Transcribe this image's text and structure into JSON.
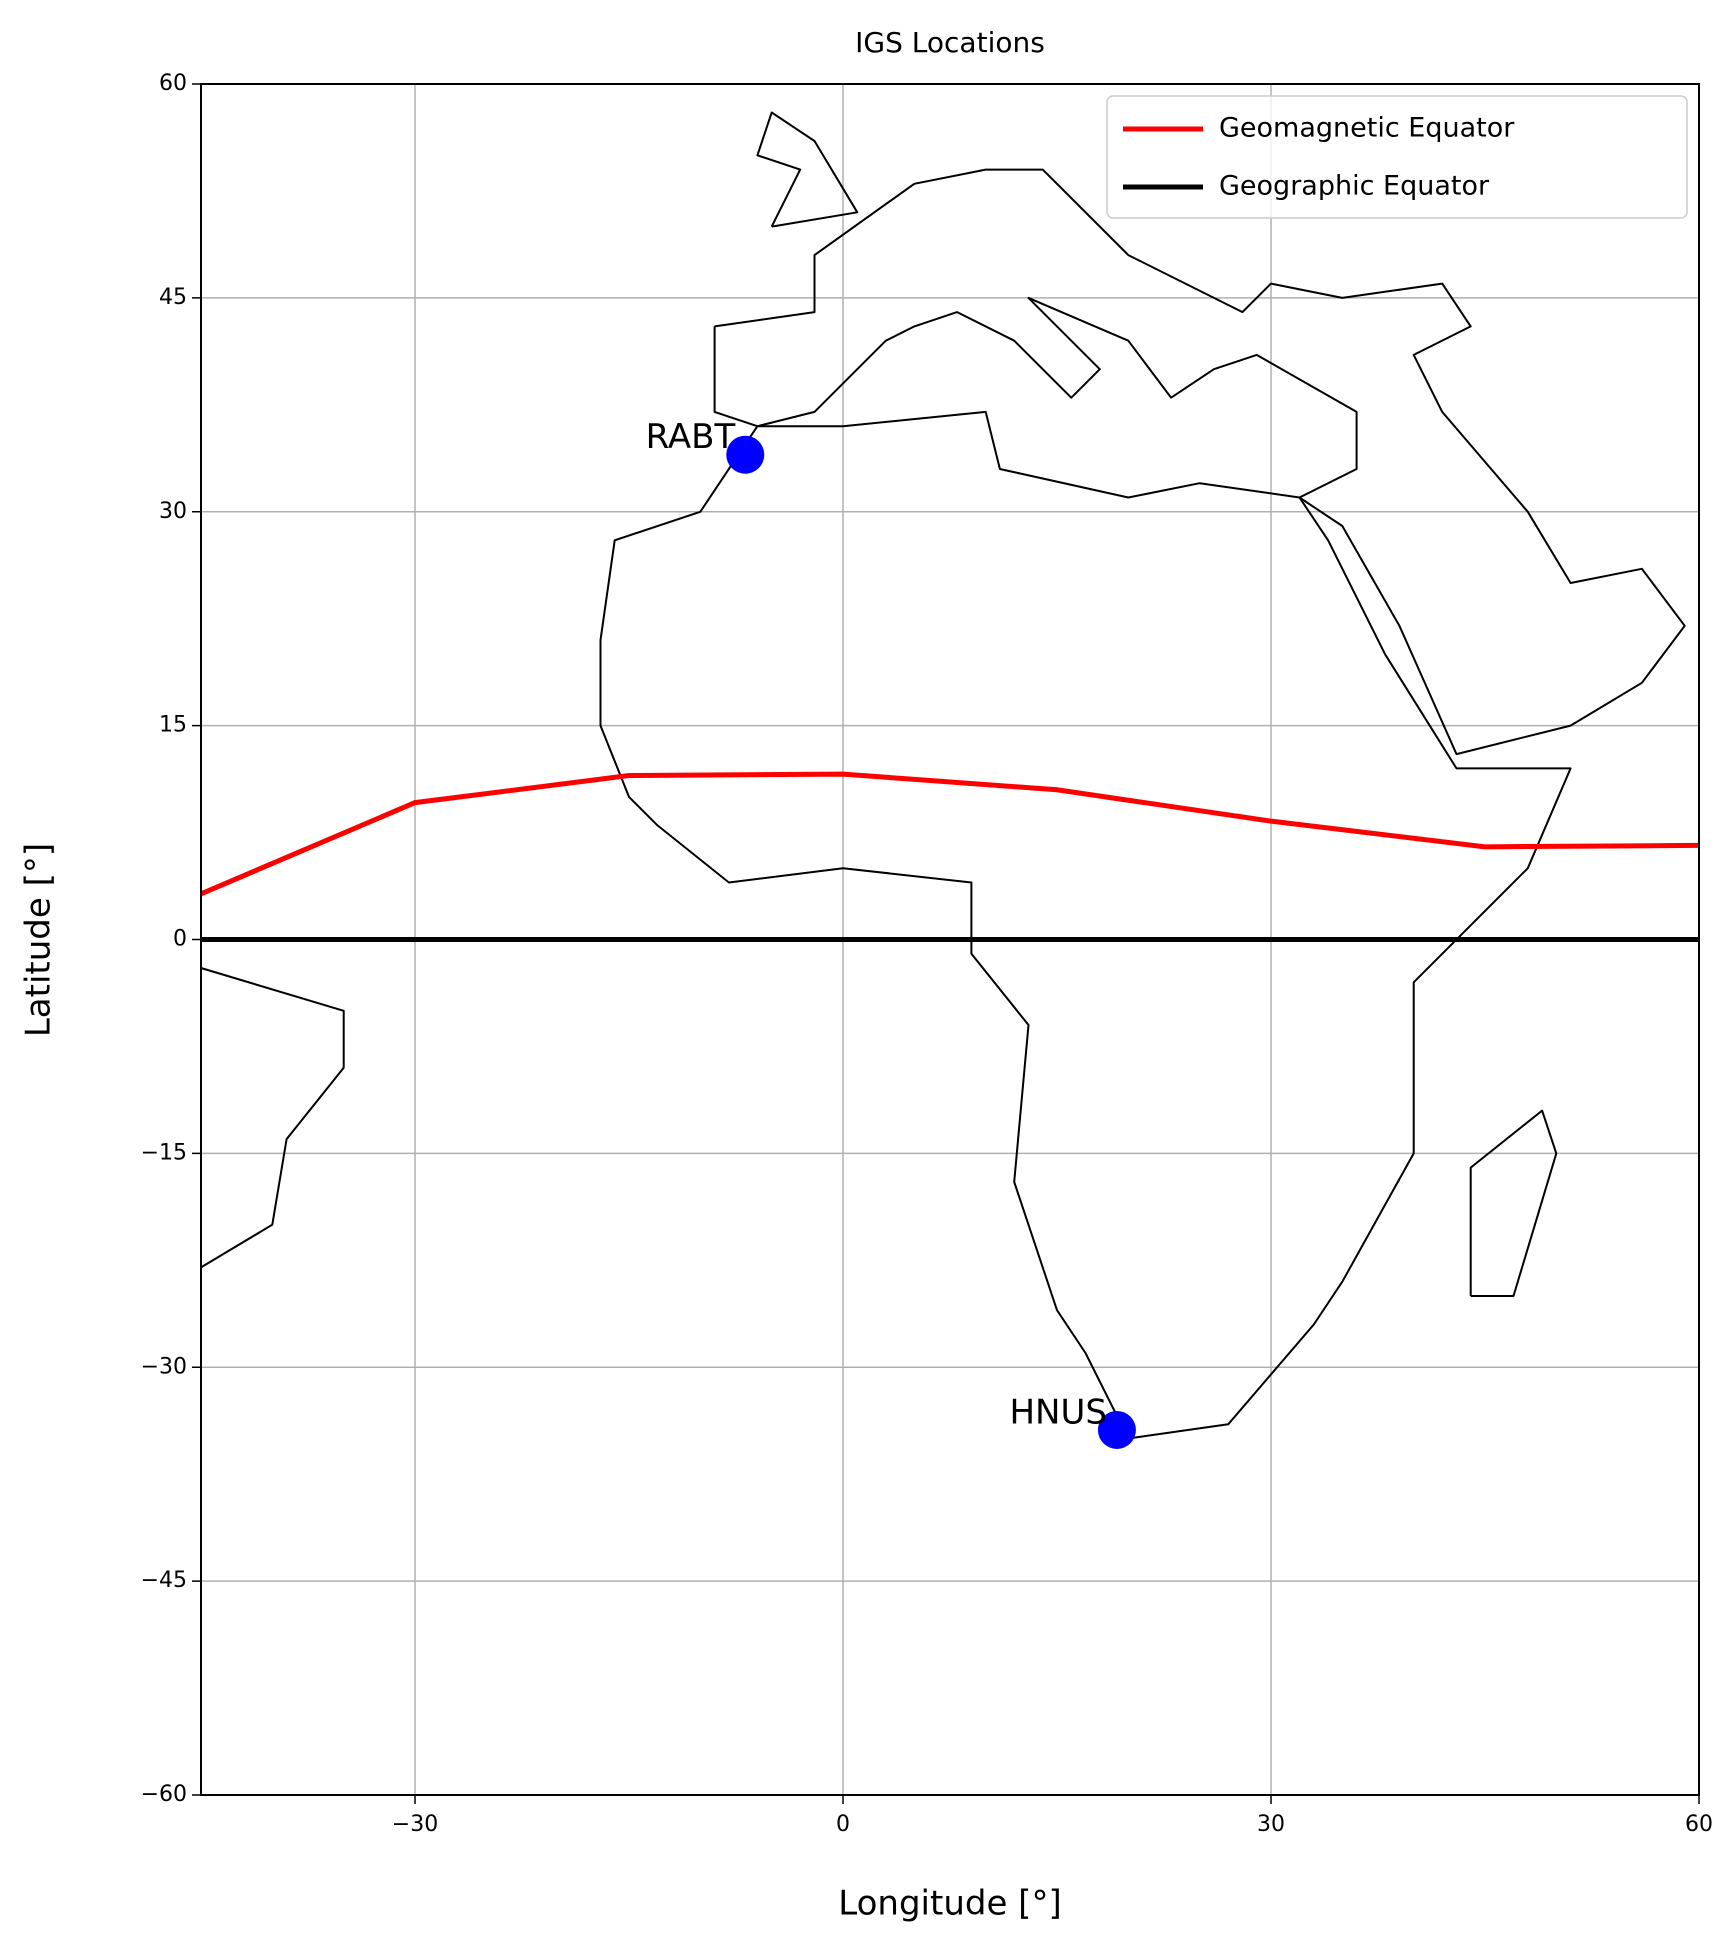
{
  "chart_data": {
    "type": "map",
    "title": "IGS Locations",
    "xlabel": "Longitude [°]",
    "ylabel": "Latitude [°]",
    "xlim": [
      -45,
      60
    ],
    "ylim": [
      -60,
      60
    ],
    "xticks": [
      {
        "value": -30,
        "label": "−30"
      },
      0,
      30,
      60
    ],
    "yticks": [
      {
        "value": -60,
        "label": "−60"
      },
      {
        "value": -45,
        "label": "−45"
      },
      {
        "value": -30,
        "label": "−30"
      },
      {
        "value": -15,
        "label": "−15"
      },
      0,
      15,
      30,
      45,
      60
    ],
    "grid": true,
    "legend": "upper right",
    "series": [
      {
        "name": "Geomagnetic Equator",
        "color": "#ff0000",
        "x": [
          -45,
          -30,
          -15,
          0,
          15,
          30,
          45,
          60
        ],
        "values": [
          3.2,
          9.6,
          11.5,
          11.6,
          10.5,
          8.3,
          6.5,
          6.6
        ]
      },
      {
        "name": "Geographic Equator",
        "color": "#000000",
        "x": [
          -45,
          60
        ],
        "values": [
          0,
          0
        ]
      }
    ],
    "stations": {
      "color": "#0000ff",
      "names": [
        "RABT",
        "HNUS"
      ],
      "lon": [
        -6.85,
        19.2
      ],
      "lat": [
        34.0,
        -34.4
      ]
    }
  }
}
